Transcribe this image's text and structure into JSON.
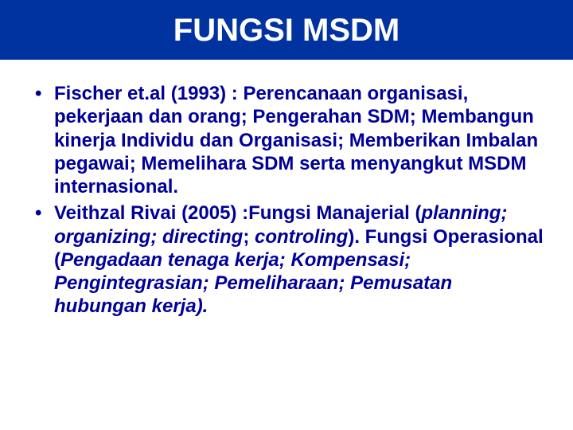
{
  "title": "FUNGSI MSDM",
  "bullets": [
    {
      "lead": "Fischer et.al (1993) :  ",
      "body": "Perencanaan organisasi, pekerjaan dan orang; Pengerahan SDM; Membangun kinerja Individu dan Organisasi; Memberikan Imbalan pegawai; Memelihara SDM serta menyangkut MSDM internasional."
    },
    {
      "lead": "Veithzal Rivai (2005) :",
      "body_pre": "Fungsi Manajerial (",
      "body_italic1": "planning; organizing; directing",
      "body_mid1": "; ",
      "body_italic2": "controling",
      "body_mid2": "). Fungsi Operasional (",
      "body_italic3": "Pengadaan tenaga kerja; Kompensasi; Pengintegrasian; Pemeliharaan; Pemusatan hubungan kerja)."
    }
  ],
  "colors": {
    "title_bg": "#0033a0",
    "title_text": "#ffffff",
    "body_text": "#000099",
    "page_bg": "#ffffff"
  },
  "typography": {
    "title_fontsize": 40,
    "body_fontsize": 24,
    "font_family": "Arial"
  }
}
